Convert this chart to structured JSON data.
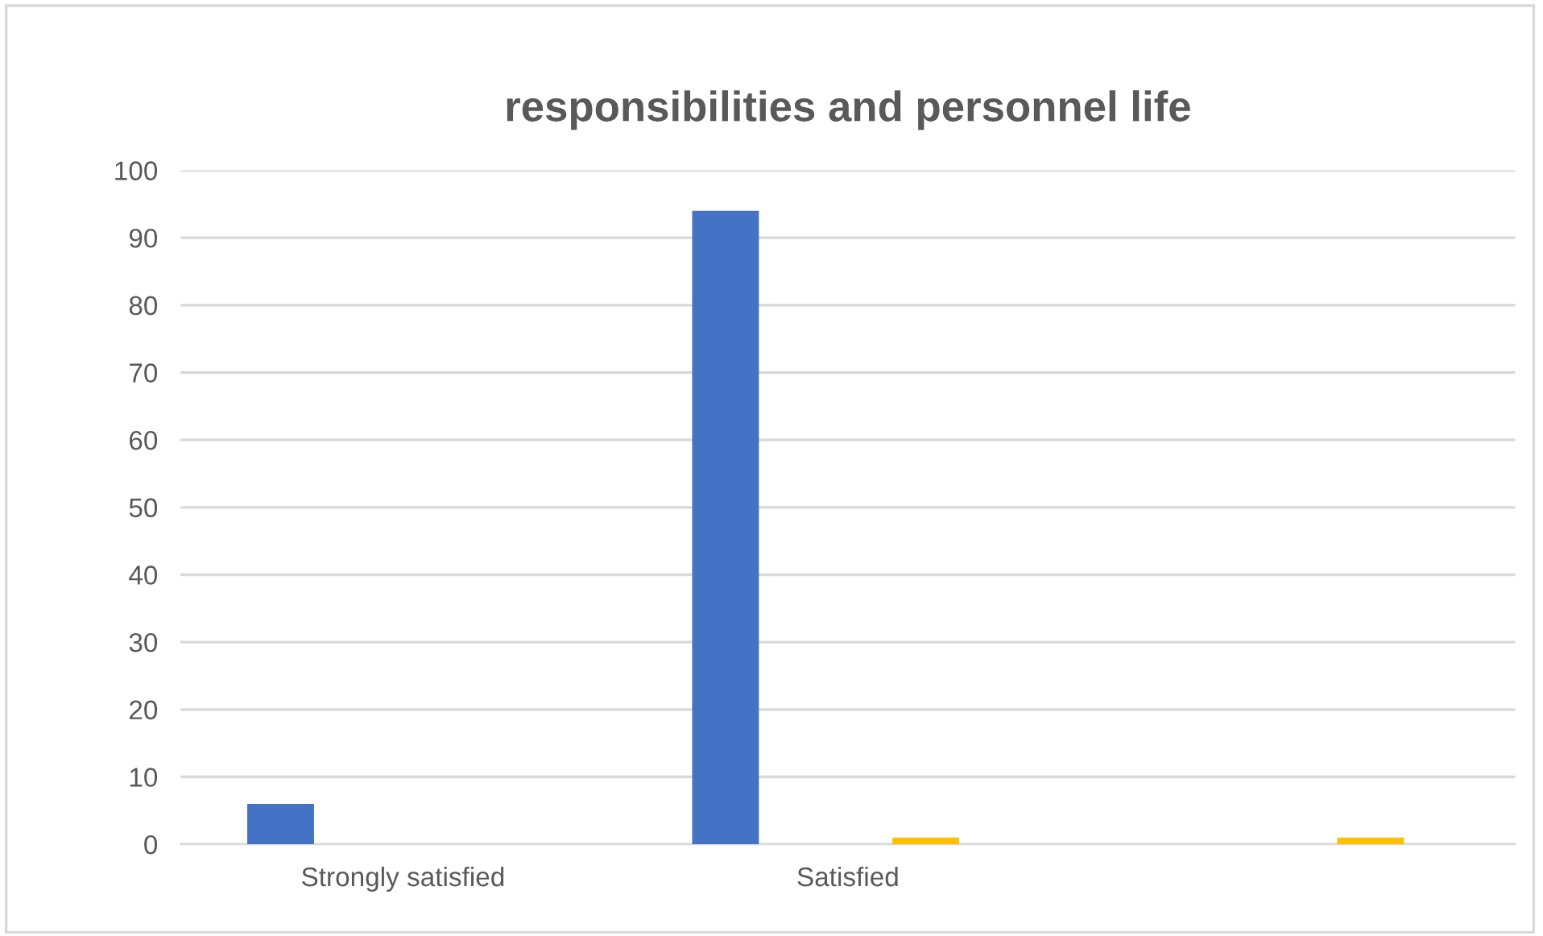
{
  "chart_data": {
    "type": "bar",
    "title": "responsibilities and personnel life",
    "categories": [
      "Strongly satisfied",
      "Satisfied",
      null
    ],
    "series": [
      {
        "color": "#4472c4",
        "values": [
          6,
          94,
          0
        ]
      },
      {
        "color": "#ffc000",
        "values": [
          0,
          1,
          1
        ]
      }
    ],
    "ylim": [
      0,
      100
    ],
    "yticks": [
      0,
      10,
      20,
      30,
      40,
      50,
      60,
      70,
      80,
      90,
      100
    ],
    "grid": "y"
  }
}
